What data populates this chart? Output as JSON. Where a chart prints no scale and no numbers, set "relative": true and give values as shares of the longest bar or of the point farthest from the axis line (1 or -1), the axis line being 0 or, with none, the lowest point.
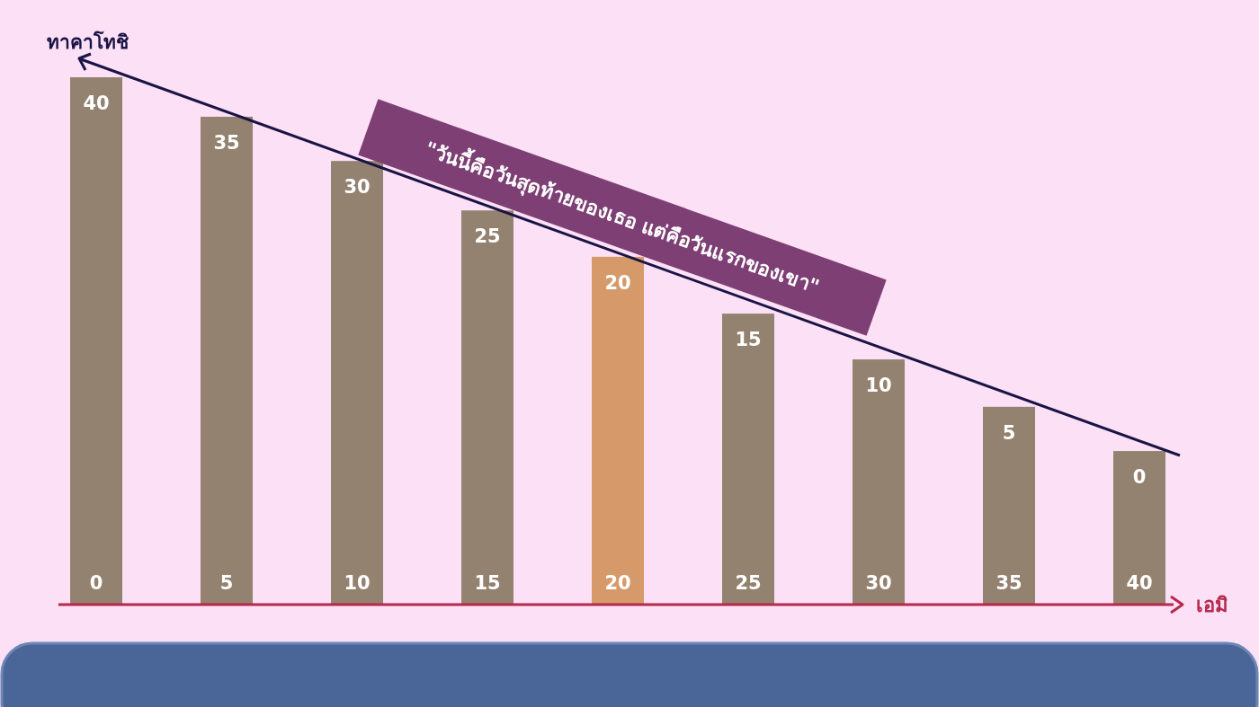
{
  "chart_data": {
    "type": "bar",
    "relative": true,
    "ylabel": "ทาคาโทชิ",
    "xlabel": "เอมิ",
    "categories": [
      "0",
      "5",
      "10",
      "15",
      "20",
      "25",
      "30",
      "35",
      "40"
    ],
    "values": [
      1,
      0.925,
      0.841,
      0.747,
      0.659,
      0.551,
      0.464,
      0.374,
      0.29
    ],
    "colors": [
      "#948270",
      "#948270",
      "#948270",
      "#948270",
      "#d69a6a",
      "#948270",
      "#948270",
      "#948270",
      "#948270"
    ],
    "annotations": [
      "\"วันนี้คือวันสุดท้ายของเธอ แต่คือวันแรกของเขา\"",
      {
        "text": "40",
        "x": "0",
        "y": 1
      },
      {
        "text": "35",
        "x": "5",
        "y": 0.925
      },
      {
        "text": "30",
        "x": "10",
        "y": 0.841
      },
      {
        "text": "25",
        "x": "15",
        "y": 0.747
      },
      {
        "text": "20",
        "x": "20",
        "y": 0.659
      },
      {
        "text": "15",
        "x": "25",
        "y": 0.551
      },
      {
        "text": "10",
        "x": "30",
        "y": 0.464
      },
      {
        "text": "5",
        "x": "35",
        "y": 0.374
      },
      {
        "text": "0",
        "x": "40",
        "y": 0.29
      }
    ]
  }
}
